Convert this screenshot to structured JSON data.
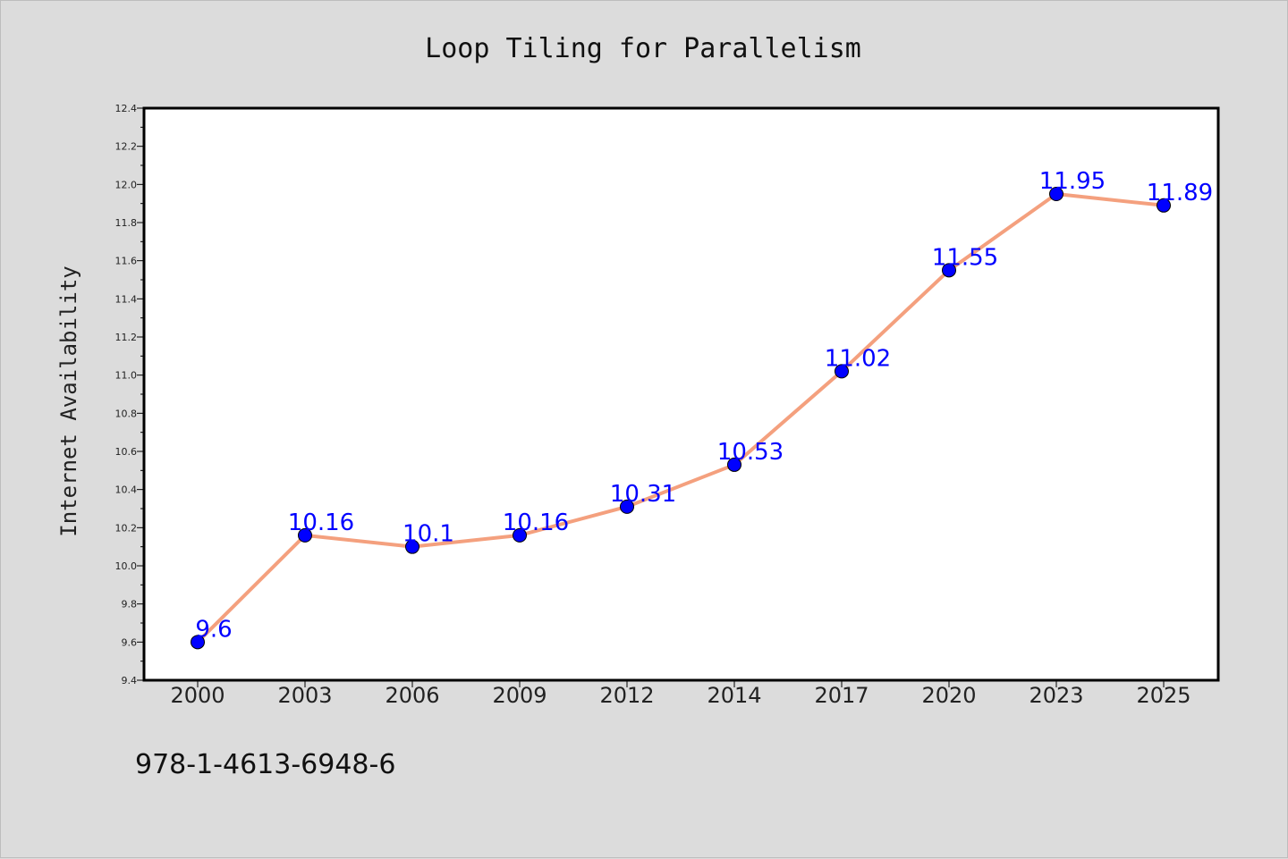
{
  "footnote": "978-1-4613-6948-6",
  "chart_data": {
    "type": "line",
    "title": "Loop Tiling for Parallelism",
    "xlabel": "",
    "ylabel": "Internet Availability",
    "categories": [
      "2000",
      "2003",
      "2006",
      "2009",
      "2012",
      "2014",
      "2017",
      "2020",
      "2023",
      "2025"
    ],
    "series": [
      {
        "values": [
          9.6,
          10.16,
          10.1,
          10.16,
          10.31,
          10.53,
          11.02,
          11.55,
          11.95,
          11.89
        ],
        "data_labels": [
          "9.6",
          "10.16",
          "10.1",
          "10.16",
          "10.31",
          "10.53",
          "11.02",
          "11.55",
          "11.95",
          "11.89"
        ],
        "line_color": "#f4a07e",
        "marker_color": "#0000ff"
      }
    ],
    "ylim": [
      9.4,
      12.4
    ],
    "yticks": [
      "9.4",
      "9.6",
      "9.8",
      "10.0",
      "10.2",
      "10.4",
      "10.6",
      "10.8",
      "11.0",
      "11.2",
      "11.4",
      "11.6",
      "11.8",
      "12.0",
      "12.2",
      "12.4"
    ],
    "grid": false,
    "legend": "none",
    "background_color": "#dcdcdc",
    "plot_background_color": "#ffffff"
  }
}
